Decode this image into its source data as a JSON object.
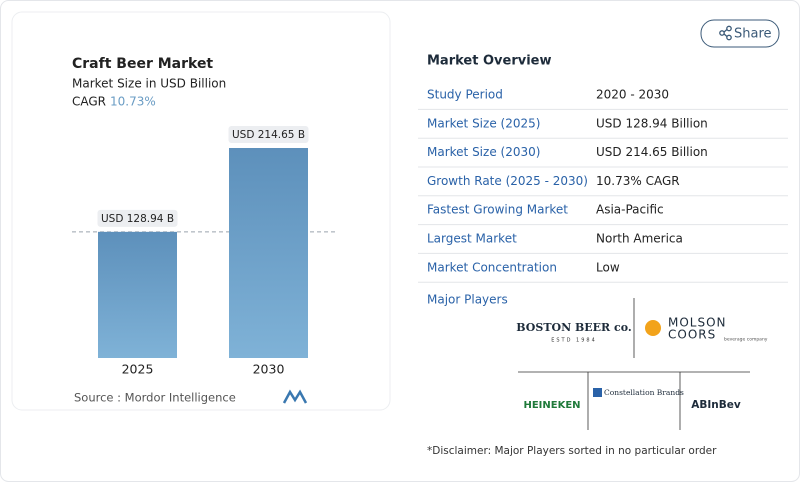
{
  "chart_data": {
    "type": "bar",
    "title": "Craft Beer Market",
    "subtitle": "Market Size in USD Billion",
    "cagr_label": "CAGR",
    "cagr": "10.73%",
    "categories": [
      "2025",
      "2030"
    ],
    "values": [
      128.94,
      214.65
    ],
    "value_labels": [
      "USD 128.94 B",
      "USD 214.65 B"
    ],
    "color": "#6a9cc4",
    "source": "Source :  Mordor Intelligence"
  },
  "share": "Share",
  "overview": {
    "title": "Market Overview",
    "rows": [
      [
        "Study Period",
        "2020 - 2030"
      ],
      [
        "Market Size (2025)",
        "USD 128.94 Billion"
      ],
      [
        "Market Size (2030)",
        "USD 214.65 Billion"
      ],
      [
        "Growth Rate (2025 - 2030)",
        "10.73% CAGR"
      ],
      [
        "Fastest Growing Market",
        "Asia-Pacific"
      ],
      [
        "Largest Market",
        "North America"
      ],
      [
        "Market Concentration",
        "Low"
      ]
    ]
  },
  "major_players": {
    "title": "Major Players",
    "logos": [
      "BOSTON BEER co.",
      "ESTD 1984",
      "MOLSON",
      "COORS",
      "beverage company",
      "Constellation Brands",
      "HEINEKEN",
      "ABInBev"
    ]
  },
  "disclaimer": "*Disclaimer: Major Players sorted in no particular order"
}
